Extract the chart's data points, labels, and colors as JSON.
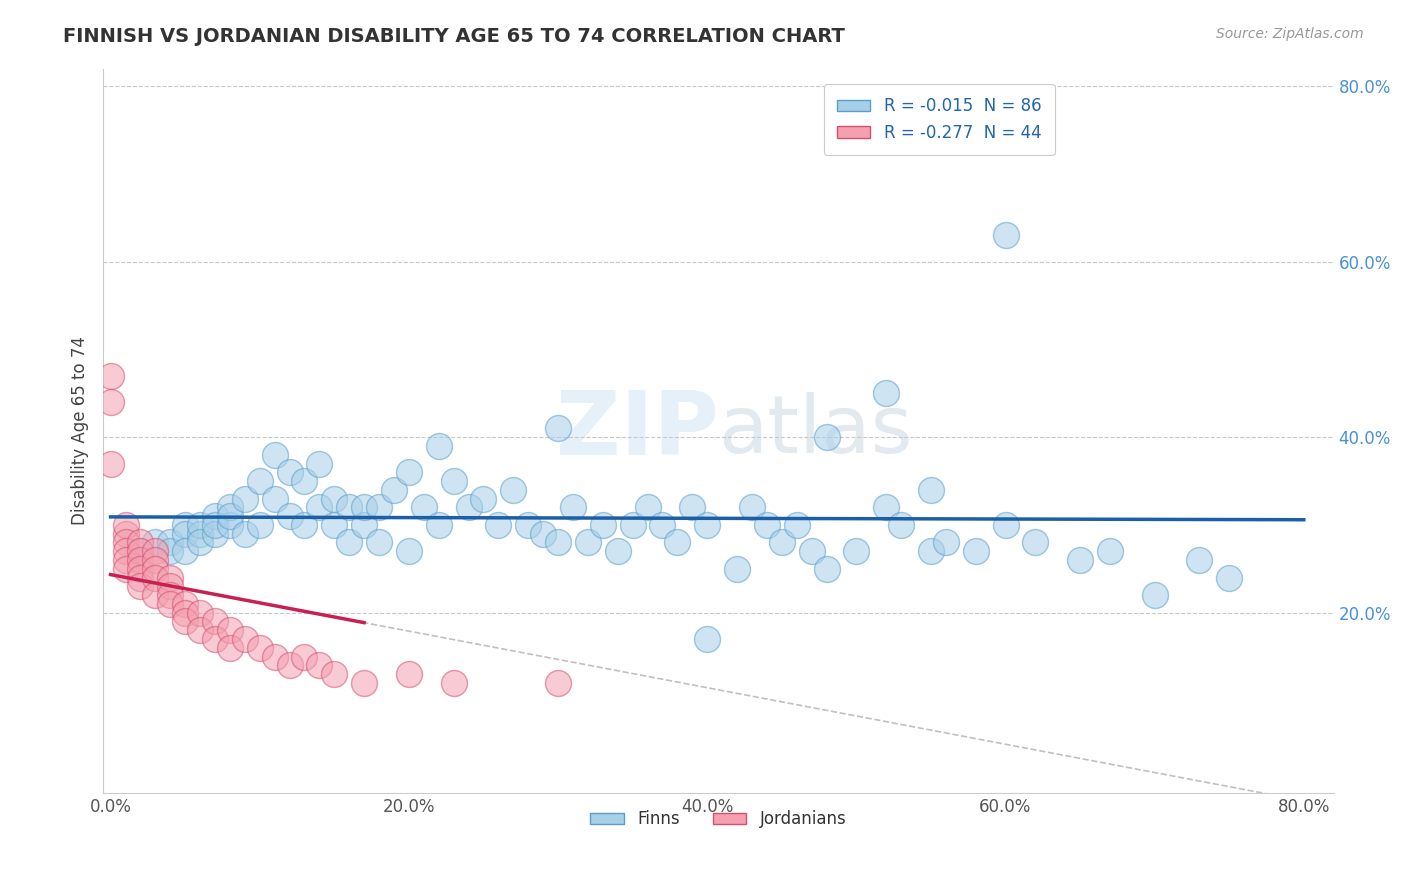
{
  "title": "FINNISH VS JORDANIAN DISABILITY AGE 65 TO 74 CORRELATION CHART",
  "source_text": "Source: ZipAtlas.com",
  "ylabel": "Disability Age 65 to 74",
  "xlim": [
    0.0,
    0.8
  ],
  "ylim": [
    0.0,
    0.8
  ],
  "xtick_labels": [
    "0.0%",
    "20.0%",
    "40.0%",
    "60.0%",
    "80.0%"
  ],
  "xtick_positions": [
    0.0,
    0.2,
    0.4,
    0.6,
    0.8
  ],
  "ytick_labels": [
    "20.0%",
    "40.0%",
    "60.0%",
    "80.0%"
  ],
  "ytick_positions": [
    0.2,
    0.4,
    0.6,
    0.8
  ],
  "finn_R": -0.015,
  "finn_N": 86,
  "jordan_R": -0.277,
  "jordan_N": 44,
  "finn_color": "#a8cfe8",
  "finn_edge_color": "#5a9ec9",
  "jordan_color": "#f4a0b0",
  "jordan_edge_color": "#d45070",
  "finn_line_color": "#1a5fa8",
  "jordan_line_color": "#c82050",
  "finn_x": [
    0.02,
    0.03,
    0.04,
    0.04,
    0.05,
    0.05,
    0.05,
    0.06,
    0.06,
    0.06,
    0.07,
    0.07,
    0.07,
    0.08,
    0.08,
    0.08,
    0.09,
    0.09,
    0.1,
    0.1,
    0.11,
    0.11,
    0.12,
    0.12,
    0.13,
    0.13,
    0.14,
    0.14,
    0.15,
    0.15,
    0.16,
    0.16,
    0.17,
    0.17,
    0.18,
    0.18,
    0.19,
    0.2,
    0.2,
    0.21,
    0.22,
    0.23,
    0.24,
    0.25,
    0.26,
    0.27,
    0.28,
    0.29,
    0.3,
    0.31,
    0.32,
    0.33,
    0.34,
    0.35,
    0.36,
    0.37,
    0.38,
    0.39,
    0.4,
    0.42,
    0.43,
    0.44,
    0.45,
    0.46,
    0.47,
    0.48,
    0.5,
    0.52,
    0.53,
    0.55,
    0.56,
    0.58,
    0.6,
    0.62,
    0.65,
    0.67,
    0.7,
    0.73,
    0.75,
    0.52,
    0.3,
    0.22,
    0.4,
    0.48,
    0.55,
    0.6
  ],
  "finn_y": [
    0.27,
    0.28,
    0.28,
    0.27,
    0.3,
    0.29,
    0.27,
    0.29,
    0.3,
    0.28,
    0.31,
    0.29,
    0.3,
    0.3,
    0.32,
    0.31,
    0.33,
    0.29,
    0.35,
    0.3,
    0.38,
    0.33,
    0.36,
    0.31,
    0.35,
    0.3,
    0.37,
    0.32,
    0.33,
    0.3,
    0.32,
    0.28,
    0.3,
    0.32,
    0.32,
    0.28,
    0.34,
    0.36,
    0.27,
    0.32,
    0.3,
    0.35,
    0.32,
    0.33,
    0.3,
    0.34,
    0.3,
    0.29,
    0.28,
    0.32,
    0.28,
    0.3,
    0.27,
    0.3,
    0.32,
    0.3,
    0.28,
    0.32,
    0.3,
    0.25,
    0.32,
    0.3,
    0.28,
    0.3,
    0.27,
    0.25,
    0.27,
    0.32,
    0.3,
    0.27,
    0.28,
    0.27,
    0.3,
    0.28,
    0.26,
    0.27,
    0.22,
    0.26,
    0.24,
    0.45,
    0.41,
    0.39,
    0.17,
    0.4,
    0.34,
    0.63
  ],
  "jordan_x": [
    0.0,
    0.0,
    0.0,
    0.01,
    0.01,
    0.01,
    0.01,
    0.01,
    0.01,
    0.02,
    0.02,
    0.02,
    0.02,
    0.02,
    0.02,
    0.03,
    0.03,
    0.03,
    0.03,
    0.03,
    0.04,
    0.04,
    0.04,
    0.04,
    0.05,
    0.05,
    0.05,
    0.06,
    0.06,
    0.07,
    0.07,
    0.08,
    0.08,
    0.09,
    0.1,
    0.11,
    0.12,
    0.13,
    0.14,
    0.15,
    0.17,
    0.2,
    0.23,
    0.3
  ],
  "jordan_y": [
    0.47,
    0.44,
    0.37,
    0.29,
    0.3,
    0.28,
    0.27,
    0.26,
    0.25,
    0.28,
    0.27,
    0.26,
    0.25,
    0.24,
    0.23,
    0.27,
    0.26,
    0.25,
    0.24,
    0.22,
    0.24,
    0.23,
    0.22,
    0.21,
    0.21,
    0.2,
    0.19,
    0.2,
    0.18,
    0.19,
    0.17,
    0.18,
    0.16,
    0.17,
    0.16,
    0.15,
    0.14,
    0.15,
    0.14,
    0.13,
    0.12,
    0.13,
    0.12,
    0.12
  ]
}
